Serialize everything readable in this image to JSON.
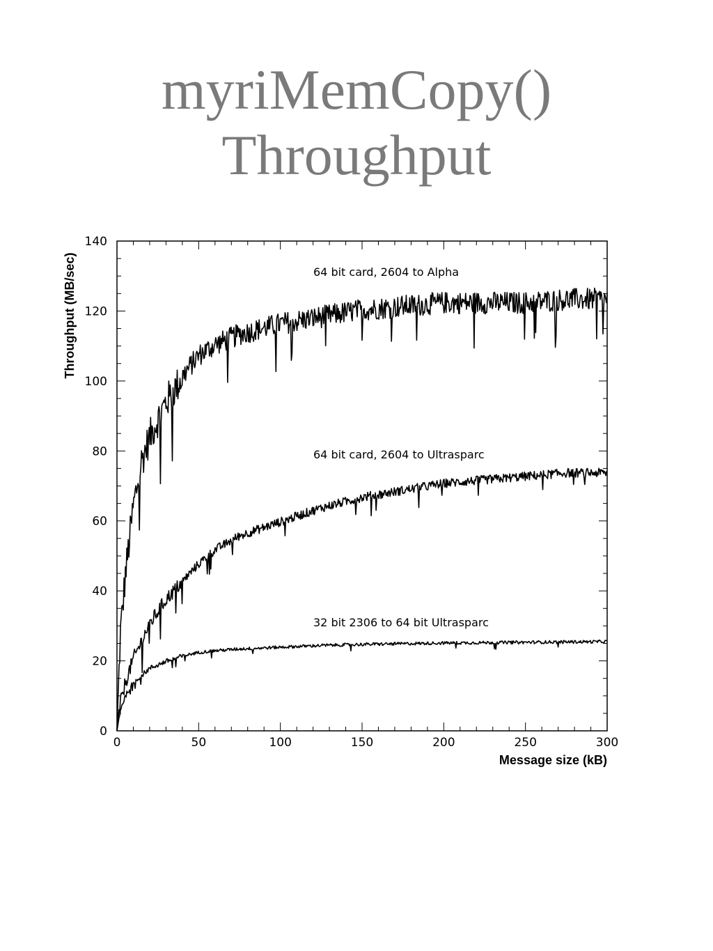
{
  "slide": {
    "title_line1": "myriMemCopy()",
    "title_line2": "Throughput"
  },
  "chart_data": {
    "type": "line",
    "xlabel": "Message size (kB)",
    "ylabel": "Throughput (MB/sec)",
    "xlim": [
      0,
      300
    ],
    "ylim": [
      0,
      140
    ],
    "x_ticks": [
      0,
      50,
      100,
      150,
      200,
      250,
      300
    ],
    "y_ticks": [
      0,
      20,
      40,
      60,
      80,
      100,
      120,
      140
    ],
    "grid": false,
    "line_color": "#000000",
    "x": [
      0,
      2,
      5,
      10,
      15,
      20,
      30,
      40,
      50,
      60,
      75,
      100,
      125,
      150,
      175,
      200,
      225,
      250,
      275,
      300
    ],
    "series": [
      {
        "name": "64 bit card, 2604 to Alpha",
        "values": [
          0,
          28,
          45,
          65,
          78,
          85,
          95,
          102,
          108,
          111,
          114,
          117,
          119,
          121,
          122,
          123,
          123,
          123,
          124,
          124
        ]
      },
      {
        "name": "64 bit card, 2604 to Ultrasparc",
        "values": [
          0,
          8,
          14,
          21,
          26,
          31,
          38,
          43,
          48,
          52,
          56,
          60,
          64,
          67,
          69,
          71,
          72,
          73,
          74,
          74
        ]
      },
      {
        "name": "32 bit 2306 to 64 bit Ultrasparc",
        "values": [
          0,
          6,
          10,
          14,
          16,
          18,
          20,
          21.5,
          22.5,
          23,
          23.5,
          24,
          24.5,
          24.8,
          25,
          25.2,
          25.3,
          25.4,
          25.5,
          25.6
        ]
      }
    ]
  }
}
